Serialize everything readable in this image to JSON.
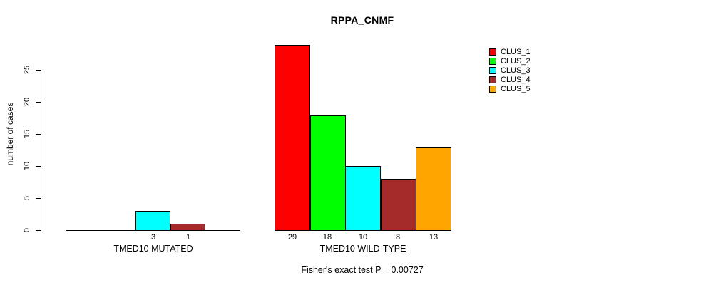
{
  "chart_data": {
    "type": "bar",
    "title": "RPPA_CNMF",
    "ylabel": "number of cases",
    "xlabel": "",
    "footnote": "Fisher's exact test P = 0.00727",
    "ylim": [
      0,
      29
    ],
    "yticks": [
      0,
      5,
      10,
      15,
      20,
      25
    ],
    "grid": false,
    "legend_position": "top-right",
    "categories": [
      "TMED10 MUTATED",
      "TMED10 WILD-TYPE"
    ],
    "series": [
      {
        "name": "CLUS_1",
        "color": "#FF0000",
        "values": [
          0,
          29
        ]
      },
      {
        "name": "CLUS_2",
        "color": "#00FF00",
        "values": [
          0,
          18
        ]
      },
      {
        "name": "CLUS_3",
        "color": "#00FFFF",
        "values": [
          3,
          10
        ]
      },
      {
        "name": "CLUS_4",
        "color": "#A52A2A",
        "values": [
          1,
          8
        ]
      },
      {
        "name": "CLUS_5",
        "color": "#FFA500",
        "values": [
          0,
          13
        ]
      }
    ]
  }
}
